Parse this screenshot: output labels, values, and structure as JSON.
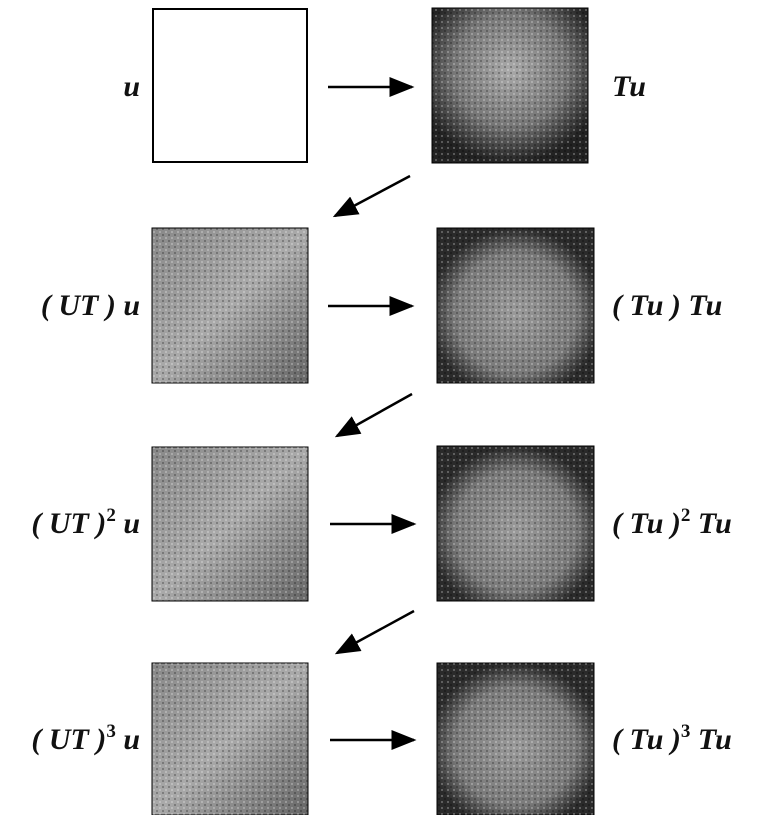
{
  "rows": [
    {
      "left": [
        {
          "text": "u"
        }
      ],
      "right": [
        {
          "text": "Tu"
        }
      ]
    },
    {
      "left": [
        {
          "text": "( UT ) u"
        }
      ],
      "right": [
        {
          "text": "( Tu ) Tu"
        }
      ]
    },
    {
      "left": [
        {
          "text": "( UT )"
        },
        {
          "text": "2",
          "sup": true
        },
        {
          "text": " u"
        }
      ],
      "right": [
        {
          "text": "( Tu )"
        },
        {
          "text": "2",
          "sup": true
        },
        {
          "text": " Tu"
        }
      ]
    },
    {
      "left": [
        {
          "text": "( UT )"
        },
        {
          "text": "3",
          "sup": true
        },
        {
          "text": " u"
        }
      ],
      "right": [
        {
          "text": "( Tu )"
        },
        {
          "text": "3",
          "sup": true
        },
        {
          "text": " Tu"
        }
      ]
    }
  ]
}
